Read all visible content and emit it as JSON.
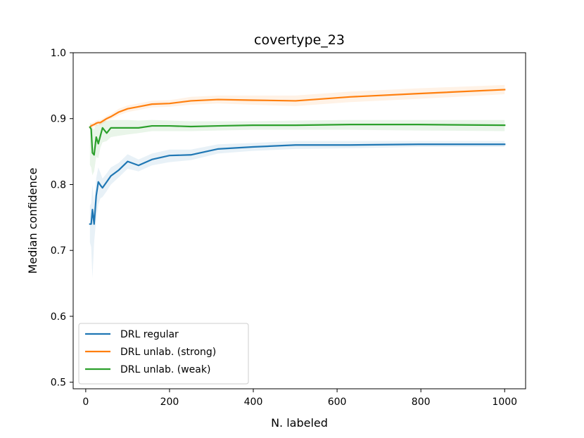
{
  "chart_data": {
    "type": "line",
    "title": "covertype_23",
    "xlabel": "N. labeled",
    "ylabel": "Median confidence",
    "xlim": [
      -30,
      1050
    ],
    "ylim": [
      0.49,
      1.0
    ],
    "xticks": [
      0,
      200,
      400,
      600,
      800,
      1000
    ],
    "yticks": [
      0.5,
      0.6,
      0.7,
      0.8,
      0.9,
      1.0
    ],
    "xtick_labels": [
      "0",
      "200",
      "400",
      "600",
      "800",
      "1000"
    ],
    "ytick_labels": [
      "0.5",
      "0.6",
      "0.7",
      "0.8",
      "0.9",
      "1.0"
    ],
    "legend_position": "lower-left",
    "series": [
      {
        "name": "DRL regular",
        "color": "#1f77b4",
        "x": [
          10,
          13,
          16,
          20,
          25,
          30,
          35,
          40,
          50,
          60,
          79,
          100,
          126,
          158,
          200,
          251,
          316,
          398,
          501,
          631,
          794,
          1000
        ],
        "values": [
          0.74,
          0.74,
          0.762,
          0.74,
          0.783,
          0.804,
          0.799,
          0.795,
          0.804,
          0.813,
          0.822,
          0.835,
          0.829,
          0.838,
          0.844,
          0.845,
          0.854,
          0.857,
          0.86,
          0.86,
          0.861,
          0.861
        ],
        "lower": [
          0.712,
          0.705,
          0.658,
          0.712,
          0.748,
          0.77,
          0.779,
          0.781,
          0.79,
          0.8,
          0.811,
          0.824,
          0.82,
          0.829,
          0.834,
          0.837,
          0.847,
          0.851,
          0.854,
          0.855,
          0.857,
          0.857
        ],
        "upper": [
          0.768,
          0.772,
          0.8,
          0.772,
          0.81,
          0.826,
          0.818,
          0.809,
          0.817,
          0.826,
          0.833,
          0.846,
          0.838,
          0.847,
          0.853,
          0.853,
          0.861,
          0.863,
          0.866,
          0.866,
          0.866,
          0.866
        ]
      },
      {
        "name": "DRL unlab. (strong)",
        "color": "#ff7f0e",
        "x": [
          10,
          13,
          16,
          20,
          25,
          30,
          35,
          40,
          50,
          60,
          79,
          100,
          126,
          158,
          200,
          251,
          316,
          398,
          501,
          631,
          794,
          1000
        ],
        "values": [
          0.887,
          0.889,
          0.89,
          0.891,
          0.893,
          0.894,
          0.894,
          0.896,
          0.9,
          0.903,
          0.91,
          0.915,
          0.918,
          0.922,
          0.923,
          0.927,
          0.929,
          0.928,
          0.927,
          0.933,
          0.938,
          0.944
        ],
        "lower": [
          0.883,
          0.885,
          0.886,
          0.887,
          0.889,
          0.89,
          0.89,
          0.892,
          0.896,
          0.899,
          0.905,
          0.91,
          0.913,
          0.917,
          0.918,
          0.921,
          0.923,
          0.921,
          0.919,
          0.925,
          0.93,
          0.937
        ],
        "upper": [
          0.891,
          0.893,
          0.894,
          0.895,
          0.897,
          0.898,
          0.898,
          0.9,
          0.904,
          0.907,
          0.915,
          0.92,
          0.923,
          0.927,
          0.928,
          0.933,
          0.935,
          0.935,
          0.935,
          0.941,
          0.946,
          0.951
        ]
      },
      {
        "name": "DRL unlab. (weak)",
        "color": "#2ca02c",
        "x": [
          10,
          13,
          16,
          20,
          25,
          30,
          35,
          40,
          50,
          60,
          79,
          100,
          126,
          158,
          200,
          251,
          316,
          398,
          501,
          631,
          794,
          1000
        ],
        "values": [
          0.887,
          0.884,
          0.848,
          0.845,
          0.872,
          0.862,
          0.874,
          0.886,
          0.878,
          0.886,
          0.886,
          0.886,
          0.886,
          0.889,
          0.889,
          0.888,
          0.889,
          0.89,
          0.89,
          0.891,
          0.891,
          0.89
        ],
        "lower": [
          0.83,
          0.826,
          0.814,
          0.82,
          0.842,
          0.84,
          0.856,
          0.864,
          0.866,
          0.872,
          0.874,
          0.876,
          0.878,
          0.881,
          0.881,
          0.881,
          0.882,
          0.883,
          0.883,
          0.883,
          0.882,
          0.881
        ],
        "upper": [
          0.894,
          0.892,
          0.886,
          0.884,
          0.892,
          0.89,
          0.894,
          0.898,
          0.896,
          0.898,
          0.898,
          0.898,
          0.897,
          0.898,
          0.897,
          0.896,
          0.896,
          0.896,
          0.897,
          0.898,
          0.898,
          0.898
        ]
      }
    ]
  }
}
